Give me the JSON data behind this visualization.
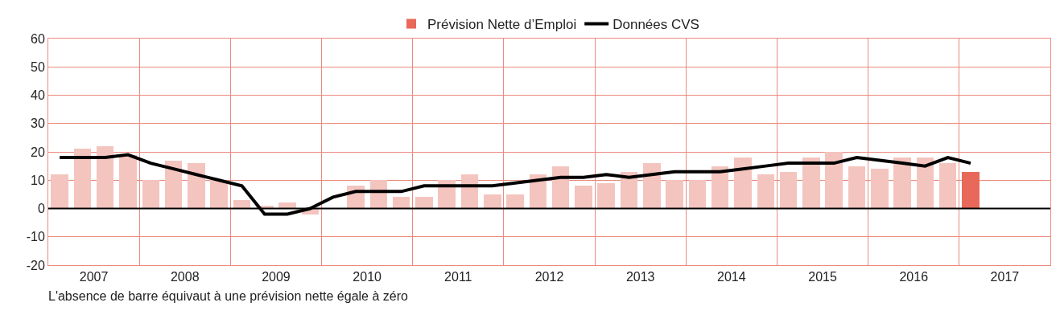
{
  "chart_data": {
    "type": "bar",
    "x": [
      2007.125,
      2007.375,
      2007.625,
      2007.875,
      2008.125,
      2008.375,
      2008.625,
      2008.875,
      2009.125,
      2009.375,
      2009.625,
      2009.875,
      2010.125,
      2010.375,
      2010.625,
      2010.875,
      2011.125,
      2011.375,
      2011.625,
      2011.875,
      2012.125,
      2012.375,
      2012.625,
      2012.875,
      2013.125,
      2013.375,
      2013.625,
      2013.875,
      2014.125,
      2014.375,
      2014.625,
      2014.875,
      2015.125,
      2015.375,
      2015.625,
      2015.875,
      2016.125,
      2016.375,
      2016.625,
      2016.875,
      2017.125
    ],
    "series": [
      {
        "name": "Prévision Nette d’Emploi",
        "color": "#e8695a",
        "colors": [
          "#f4c4bf",
          "#f4c4bf",
          "#f4c4bf",
          "#f4c4bf",
          "#f4c4bf",
          "#f4c4bf",
          "#f4c4bf",
          "#f4c4bf",
          "#f4c4bf",
          "#f4c4bf",
          "#f4c4bf",
          "#f4c4bf",
          "#f4c4bf",
          "#f4c4bf",
          "#f4c4bf",
          "#f4c4bf",
          "#f4c4bf",
          "#f4c4bf",
          "#f4c4bf",
          "#f4c4bf",
          "#f4c4bf",
          "#f4c4bf",
          "#f4c4bf",
          "#f4c4bf",
          "#f4c4bf",
          "#f4c4bf",
          "#f4c4bf",
          "#f4c4bf",
          "#f4c4bf",
          "#f4c4bf",
          "#f4c4bf",
          "#f4c4bf",
          "#f4c4bf",
          "#f4c4bf",
          "#f4c4bf",
          "#f4c4bf",
          "#f4c4bf",
          "#f4c4bf",
          "#f4c4bf",
          "#f4c4bf",
          "#e8695a"
        ],
        "values": [
          12,
          21,
          22,
          19,
          10,
          17,
          16,
          10,
          3,
          1,
          2,
          -2,
          0,
          8,
          10,
          4,
          4,
          10,
          12,
          5,
          5,
          12,
          15,
          8,
          9,
          13,
          16,
          10,
          10,
          15,
          18,
          12,
          13,
          18,
          20,
          15,
          14,
          18,
          18,
          16,
          13
        ]
      },
      {
        "name": "Données CVS",
        "type": "line",
        "color": "#000000",
        "values": [
          18,
          18,
          18,
          19,
          16,
          14,
          12,
          10,
          8,
          -2,
          -2,
          0,
          4,
          6,
          6,
          6,
          8,
          8,
          8,
          8,
          9,
          10,
          11,
          11,
          12,
          11,
          12,
          13,
          13,
          13,
          14,
          15,
          16,
          16,
          16,
          18,
          17,
          16,
          15,
          18,
          16
        ]
      }
    ],
    "xlim": [
      2007,
      2018
    ],
    "xticks": [
      {
        "value": 2007,
        "label": null
      },
      {
        "value": 2007.5,
        "label": "2007"
      },
      {
        "value": 2008,
        "label": null
      },
      {
        "value": 2008.5,
        "label": "2008"
      },
      {
        "value": 2009,
        "label": null
      },
      {
        "value": 2009.5,
        "label": "2009"
      },
      {
        "value": 2010,
        "label": null
      },
      {
        "value": 2010.5,
        "label": "2010"
      },
      {
        "value": 2011,
        "label": null
      },
      {
        "value": 2011.5,
        "label": "2011"
      },
      {
        "value": 2012,
        "label": null
      },
      {
        "value": 2012.5,
        "label": "2012"
      },
      {
        "value": 2013,
        "label": null
      },
      {
        "value": 2013.5,
        "label": "2013"
      },
      {
        "value": 2014,
        "label": null
      },
      {
        "value": 2014.5,
        "label": "2014"
      },
      {
        "value": 2015,
        "label": null
      },
      {
        "value": 2015.5,
        "label": "2015"
      },
      {
        "value": 2016,
        "label": null
      },
      {
        "value": 2016.5,
        "label": "2016"
      },
      {
        "value": 2017,
        "label": null
      },
      {
        "value": 2017.5,
        "label": "2017"
      },
      {
        "value": 2018,
        "label": null
      }
    ],
    "ylim": [
      -20,
      60
    ],
    "yticks": [
      -20,
      -10,
      0,
      10,
      20,
      30,
      40,
      50,
      60
    ],
    "grid": true,
    "legend": "top",
    "ref_lines": [
      {
        "axis": "y",
        "value": 0,
        "color": "#000000"
      }
    ],
    "annotations": [
      "L'absence de barre équivaut à une prévision nette égale à zéro"
    ]
  }
}
